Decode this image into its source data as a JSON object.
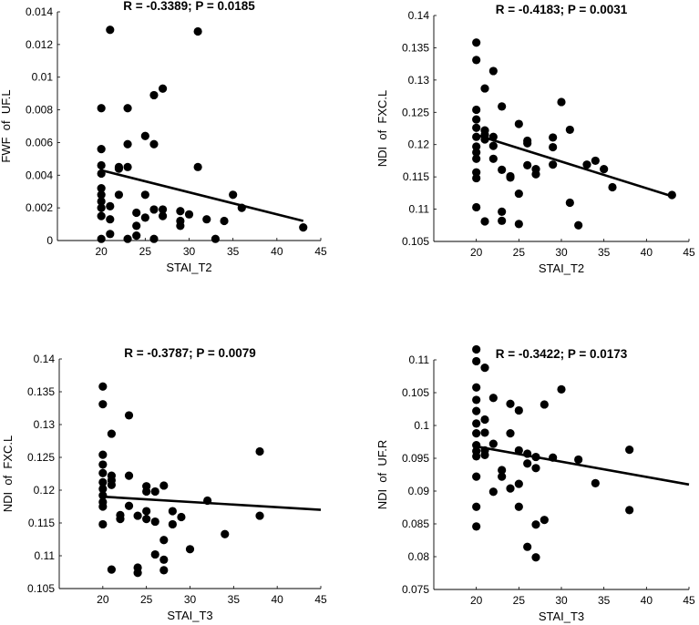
{
  "chart_data": [
    {
      "type": "scatter",
      "title": "R = -0.3389; P = 0.0185",
      "xlabel": "STAI_T2",
      "ylabel": "FWF  of  UF.L",
      "xlim": [
        15,
        45
      ],
      "ylim": [
        0,
        0.014
      ],
      "xticks": [
        20,
        25,
        30,
        35,
        40,
        45
      ],
      "yticks": [
        0,
        0.002,
        0.004,
        0.006,
        0.008,
        0.01,
        0.012,
        0.014
      ],
      "xtick_labels": [
        "20",
        "25",
        "30",
        "35",
        "40",
        "45"
      ],
      "ytick_labels": [
        "0",
        "0.002",
        "0.004",
        "0.006",
        "0.008",
        "0.01",
        "0.012",
        "0.014"
      ],
      "trend_line": {
        "x": [
          20,
          43
        ],
        "y": [
          0.0043,
          0.0012
        ]
      },
      "points": [
        {
          "x": 20,
          "y": 0.0001
        },
        {
          "x": 20,
          "y": 0.0015
        },
        {
          "x": 20,
          "y": 0.002
        },
        {
          "x": 20,
          "y": 0.0024
        },
        {
          "x": 20,
          "y": 0.0028
        },
        {
          "x": 20,
          "y": 0.0032
        },
        {
          "x": 20,
          "y": 0.0041
        },
        {
          "x": 20,
          "y": 0.0046
        },
        {
          "x": 20,
          "y": 0.0056
        },
        {
          "x": 20,
          "y": 0.0081
        },
        {
          "x": 21,
          "y": 0.0129
        },
        {
          "x": 21,
          "y": 0.0004
        },
        {
          "x": 21,
          "y": 0.0013
        },
        {
          "x": 21,
          "y": 0.0021
        },
        {
          "x": 22,
          "y": 0.0028
        },
        {
          "x": 22,
          "y": 0.0044
        },
        {
          "x": 22,
          "y": 0.0045
        },
        {
          "x": 23,
          "y": 0.0001
        },
        {
          "x": 23,
          "y": 0.0045
        },
        {
          "x": 23,
          "y": 0.0059
        },
        {
          "x": 23,
          "y": 0.0081
        },
        {
          "x": 24,
          "y": 0.0003
        },
        {
          "x": 24,
          "y": 0.0009
        },
        {
          "x": 24,
          "y": 0.0017
        },
        {
          "x": 25,
          "y": 0.0014
        },
        {
          "x": 25,
          "y": 0.0028
        },
        {
          "x": 25,
          "y": 0.0064
        },
        {
          "x": 26,
          "y": 0.0001
        },
        {
          "x": 26,
          "y": 0.0019
        },
        {
          "x": 26,
          "y": 0.0059
        },
        {
          "x": 26,
          "y": 0.0089
        },
        {
          "x": 27,
          "y": 0.0015
        },
        {
          "x": 27,
          "y": 0.0019
        },
        {
          "x": 27,
          "y": 0.0093
        },
        {
          "x": 29,
          "y": 0.0009
        },
        {
          "x": 29,
          "y": 0.0012
        },
        {
          "x": 29,
          "y": 0.0018
        },
        {
          "x": 30,
          "y": 0.0016
        },
        {
          "x": 31,
          "y": 0.0128
        },
        {
          "x": 31,
          "y": 0.0045
        },
        {
          "x": 32,
          "y": 0.0013
        },
        {
          "x": 33,
          "y": 0.0001
        },
        {
          "x": 34,
          "y": 0.0012
        },
        {
          "x": 35,
          "y": 0.0028
        },
        {
          "x": 36,
          "y": 0.002
        },
        {
          "x": 43,
          "y": 0.0008
        }
      ]
    },
    {
      "type": "scatter",
      "title": "R = -0.4183; P = 0.0031",
      "xlabel": "STAI_T2",
      "ylabel": "NDI  of  FXC.L",
      "xlim": [
        15,
        45
      ],
      "ylim": [
        0.105,
        0.14
      ],
      "xticks": [
        20,
        25,
        30,
        35,
        40,
        45
      ],
      "yticks": [
        0.105,
        0.11,
        0.115,
        0.12,
        0.125,
        0.13,
        0.135,
        0.14
      ],
      "xtick_labels": [
        "20",
        "25",
        "30",
        "35",
        "40",
        "45"
      ],
      "ytick_labels": [
        "0.105",
        "0.11",
        "0.115",
        "0.12",
        "0.125",
        "0.13",
        "0.135",
        "0.14"
      ],
      "trend_line": {
        "x": [
          20,
          43
        ],
        "y": [
          0.1215,
          0.112
        ]
      },
      "points": [
        {
          "x": 20,
          "y": 0.1358
        },
        {
          "x": 20,
          "y": 0.1331
        },
        {
          "x": 20,
          "y": 0.1254
        },
        {
          "x": 20,
          "y": 0.1239
        },
        {
          "x": 20,
          "y": 0.1226
        },
        {
          "x": 20,
          "y": 0.1212
        },
        {
          "x": 20,
          "y": 0.1197
        },
        {
          "x": 20,
          "y": 0.1188
        },
        {
          "x": 20,
          "y": 0.1178
        },
        {
          "x": 20,
          "y": 0.1157
        },
        {
          "x": 20,
          "y": 0.1148
        },
        {
          "x": 20,
          "y": 0.1103
        },
        {
          "x": 21,
          "y": 0.1287
        },
        {
          "x": 21,
          "y": 0.1222
        },
        {
          "x": 21,
          "y": 0.1215
        },
        {
          "x": 21,
          "y": 0.1208
        },
        {
          "x": 21,
          "y": 0.1081
        },
        {
          "x": 22,
          "y": 0.1314
        },
        {
          "x": 22,
          "y": 0.1212
        },
        {
          "x": 22,
          "y": 0.1198
        },
        {
          "x": 22,
          "y": 0.1178
        },
        {
          "x": 23,
          "y": 0.1259
        },
        {
          "x": 23,
          "y": 0.1161
        },
        {
          "x": 23,
          "y": 0.1096
        },
        {
          "x": 23,
          "y": 0.1082
        },
        {
          "x": 24,
          "y": 0.1151
        },
        {
          "x": 24,
          "y": 0.1149
        },
        {
          "x": 25,
          "y": 0.1232
        },
        {
          "x": 25,
          "y": 0.1124
        },
        {
          "x": 25,
          "y": 0.1077
        },
        {
          "x": 26,
          "y": 0.1206
        },
        {
          "x": 26,
          "y": 0.1202
        },
        {
          "x": 26,
          "y": 0.1168
        },
        {
          "x": 27,
          "y": 0.1162
        },
        {
          "x": 27,
          "y": 0.1154
        },
        {
          "x": 29,
          "y": 0.1211
        },
        {
          "x": 29,
          "y": 0.1196
        },
        {
          "x": 29,
          "y": 0.1169
        },
        {
          "x": 30,
          "y": 0.1266
        },
        {
          "x": 31,
          "y": 0.1223
        },
        {
          "x": 31,
          "y": 0.111
        },
        {
          "x": 32,
          "y": 0.1075
        },
        {
          "x": 33,
          "y": 0.1169
        },
        {
          "x": 34,
          "y": 0.1175
        },
        {
          "x": 35,
          "y": 0.1162
        },
        {
          "x": 36,
          "y": 0.1134
        },
        {
          "x": 43,
          "y": 0.1122
        }
      ]
    },
    {
      "type": "scatter",
      "title": "R = -0.3787; P = 0.0079",
      "xlabel": "STAI_T3",
      "ylabel": "NDI  of  FXC.L",
      "xlim": [
        15,
        45
      ],
      "ylim": [
        0.105,
        0.14
      ],
      "xticks": [
        20,
        25,
        30,
        35,
        40,
        45
      ],
      "yticks": [
        0.105,
        0.11,
        0.115,
        0.12,
        0.125,
        0.13,
        0.135,
        0.14
      ],
      "xtick_labels": [
        "20",
        "25",
        "30",
        "35",
        "40",
        "45"
      ],
      "ytick_labels": [
        "0.105",
        "0.11",
        "0.115",
        "0.12",
        "0.125",
        "0.13",
        "0.135",
        "0.14"
      ],
      "trend_line": {
        "x": [
          20,
          45
        ],
        "y": [
          0.119,
          0.117
        ]
      },
      "points": [
        {
          "x": 20,
          "y": 0.1358
        },
        {
          "x": 20,
          "y": 0.1331
        },
        {
          "x": 20,
          "y": 0.1254
        },
        {
          "x": 20,
          "y": 0.1239
        },
        {
          "x": 20,
          "y": 0.1226
        },
        {
          "x": 20,
          "y": 0.1212
        },
        {
          "x": 20,
          "y": 0.1202
        },
        {
          "x": 20,
          "y": 0.1192
        },
        {
          "x": 20,
          "y": 0.1182
        },
        {
          "x": 20,
          "y": 0.1175
        },
        {
          "x": 20,
          "y": 0.1148
        },
        {
          "x": 21,
          "y": 0.1286
        },
        {
          "x": 21,
          "y": 0.1222
        },
        {
          "x": 21,
          "y": 0.1215
        },
        {
          "x": 21,
          "y": 0.1208
        },
        {
          "x": 21,
          "y": 0.1079
        },
        {
          "x": 22,
          "y": 0.1162
        },
        {
          "x": 22,
          "y": 0.1156
        },
        {
          "x": 23,
          "y": 0.1314
        },
        {
          "x": 23,
          "y": 0.1222
        },
        {
          "x": 23,
          "y": 0.1176
        },
        {
          "x": 24,
          "y": 0.1161
        },
        {
          "x": 24,
          "y": 0.1082
        },
        {
          "x": 24,
          "y": 0.1074
        },
        {
          "x": 25,
          "y": 0.1206
        },
        {
          "x": 25,
          "y": 0.1198
        },
        {
          "x": 25,
          "y": 0.1168
        },
        {
          "x": 25,
          "y": 0.1156
        },
        {
          "x": 26,
          "y": 0.1198
        },
        {
          "x": 26,
          "y": 0.1152
        },
        {
          "x": 26,
          "y": 0.1102
        },
        {
          "x": 27,
          "y": 0.1207
        },
        {
          "x": 27,
          "y": 0.1124
        },
        {
          "x": 27,
          "y": 0.1094
        },
        {
          "x": 27,
          "y": 0.1078
        },
        {
          "x": 28,
          "y": 0.1168
        },
        {
          "x": 28,
          "y": 0.1148
        },
        {
          "x": 29,
          "y": 0.1159
        },
        {
          "x": 30,
          "y": 0.111
        },
        {
          "x": 32,
          "y": 0.1184
        },
        {
          "x": 34,
          "y": 0.1133
        },
        {
          "x": 38,
          "y": 0.1259
        },
        {
          "x": 38,
          "y": 0.1161
        }
      ]
    },
    {
      "type": "scatter",
      "title": "R = -0.3422; P = 0.0173",
      "xlabel": "STAI_T3",
      "ylabel": "NDI  of  UF.R",
      "xlim": [
        15,
        45
      ],
      "ylim": [
        0.075,
        0.11
      ],
      "xticks": [
        20,
        25,
        30,
        35,
        40,
        45
      ],
      "yticks": [
        0.075,
        0.08,
        0.085,
        0.09,
        0.095,
        0.1,
        0.105,
        0.11
      ],
      "xtick_labels": [
        "20",
        "25",
        "30",
        "35",
        "40",
        "45"
      ],
      "ytick_labels": [
        "0.075",
        "0.08",
        "0.085",
        "0.09",
        "0.095",
        "0.1",
        "0.105",
        "0.11"
      ],
      "trend_line": {
        "x": [
          20,
          45
        ],
        "y": [
          0.0968,
          0.091
        ]
      },
      "points": [
        {
          "x": 20,
          "y": 0.1116
        },
        {
          "x": 20,
          "y": 0.1098
        },
        {
          "x": 20,
          "y": 0.1058
        },
        {
          "x": 20,
          "y": 0.1039
        },
        {
          "x": 20,
          "y": 0.1022
        },
        {
          "x": 20,
          "y": 0.1003
        },
        {
          "x": 20,
          "y": 0.0988
        },
        {
          "x": 20,
          "y": 0.097
        },
        {
          "x": 20,
          "y": 0.0961
        },
        {
          "x": 20,
          "y": 0.0953
        },
        {
          "x": 20,
          "y": 0.0922
        },
        {
          "x": 20,
          "y": 0.0876
        },
        {
          "x": 20,
          "y": 0.0846
        },
        {
          "x": 21,
          "y": 0.1088
        },
        {
          "x": 21,
          "y": 0.1009
        },
        {
          "x": 21,
          "y": 0.0989
        },
        {
          "x": 21,
          "y": 0.0962
        },
        {
          "x": 21,
          "y": 0.0955
        },
        {
          "x": 22,
          "y": 0.1042
        },
        {
          "x": 22,
          "y": 0.0972
        },
        {
          "x": 22,
          "y": 0.0899
        },
        {
          "x": 23,
          "y": 0.0932
        },
        {
          "x": 23,
          "y": 0.0922
        },
        {
          "x": 24,
          "y": 0.1033
        },
        {
          "x": 24,
          "y": 0.0988
        },
        {
          "x": 24,
          "y": 0.0904
        },
        {
          "x": 25,
          "y": 0.1023
        },
        {
          "x": 25,
          "y": 0.0962
        },
        {
          "x": 25,
          "y": 0.0911
        },
        {
          "x": 25,
          "y": 0.0876
        },
        {
          "x": 26,
          "y": 0.0957
        },
        {
          "x": 26,
          "y": 0.0942
        },
        {
          "x": 26,
          "y": 0.0815
        },
        {
          "x": 27,
          "y": 0.0952
        },
        {
          "x": 27,
          "y": 0.0935
        },
        {
          "x": 27,
          "y": 0.0849
        },
        {
          "x": 27,
          "y": 0.0799
        },
        {
          "x": 28,
          "y": 0.1032
        },
        {
          "x": 28,
          "y": 0.0856
        },
        {
          "x": 29,
          "y": 0.0951
        },
        {
          "x": 30,
          "y": 0.1055
        },
        {
          "x": 32,
          "y": 0.0948
        },
        {
          "x": 34,
          "y": 0.0912
        },
        {
          "x": 38,
          "y": 0.0963
        },
        {
          "x": 38,
          "y": 0.0871
        }
      ]
    }
  ]
}
